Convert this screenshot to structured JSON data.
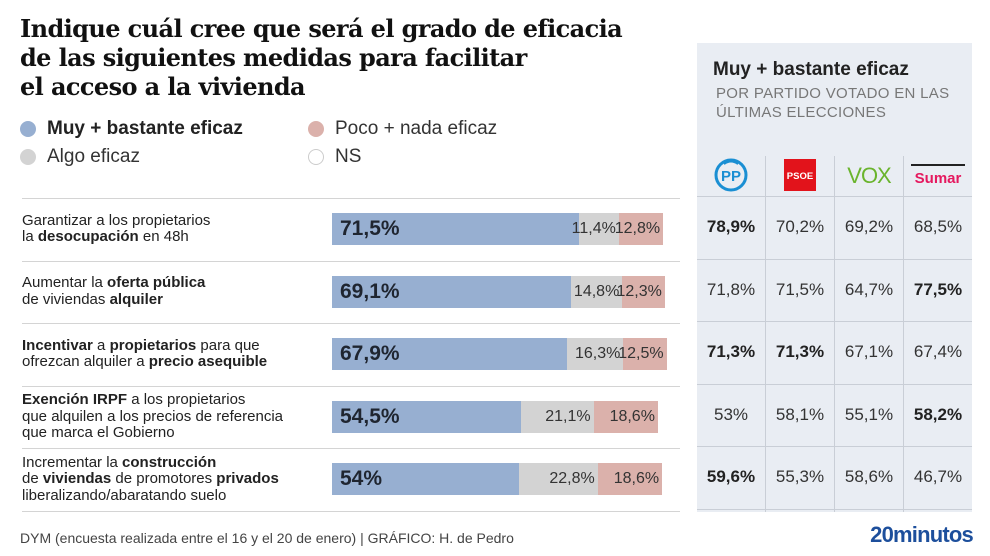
{
  "title_lines": [
    "Indique cuál cree que será el grado de eficacia",
    "de las siguientes medidas para facilitar",
    "el acceso a la vivienda"
  ],
  "legend": [
    {
      "label": "Muy + bastante eficaz",
      "color": "#97afd1",
      "bold": true
    },
    {
      "label": "Algo eficaz",
      "color": "#d3d3d3",
      "bold": false
    },
    {
      "label": "Poco + nada eficaz",
      "color": "#dbb1ab",
      "bold": false
    },
    {
      "label": "NS",
      "color": "#ffffff",
      "bold": false
    }
  ],
  "chart_data": {
    "type": "bar",
    "orientation": "horizontal-stacked-100",
    "title": "Indique cuál cree que será el grado de eficacia de las siguientes medidas para facilitar el acceso a la vivienda",
    "series_names": [
      "Muy + bastante eficaz",
      "Algo eficaz",
      "Poco + nada eficaz",
      "NS"
    ],
    "colors": [
      "#97afd1",
      "#d3d3d3",
      "#dbb1ab",
      "#ffffff"
    ],
    "categories": [
      "Garantizar a los propietarios la desocupación en 48h",
      "Aumentar la oferta pública de viviendas alquiler",
      "Incentivar a propietarios para que ofrezcan alquiler a precio asequible",
      "Exención IRPF a los propietarios que alquilen a los precios de referencia que marca el Gobierno",
      "Incrementar la construcción de viviendas de promotores privados liberalizando/abaratando suelo"
    ],
    "rows": [
      {
        "values": [
          71.5,
          11.4,
          12.8,
          4.3
        ],
        "labels": [
          "71,5%",
          "11,4%",
          "12,8%"
        ],
        "label_parts": [
          [
            "Garantizar a los propietarios",
            false
          ],
          [
            "\n",
            false
          ],
          [
            "la ",
            false
          ],
          [
            "desocupación",
            true
          ],
          [
            " en 48h",
            false
          ]
        ]
      },
      {
        "values": [
          69.1,
          14.8,
          12.3,
          3.8
        ],
        "labels": [
          "69,1%",
          "14,8%",
          "12,3%"
        ],
        "label_parts": [
          [
            "Aumentar la ",
            false
          ],
          [
            "oferta pública",
            true
          ],
          [
            "\n",
            false
          ],
          [
            "de viviendas ",
            false
          ],
          [
            "alquiler",
            true
          ]
        ]
      },
      {
        "values": [
          67.9,
          16.3,
          12.5,
          3.3
        ],
        "labels": [
          "67,9%",
          "16,3%",
          "12,5%"
        ],
        "label_parts": [
          [
            "Incentivar",
            true
          ],
          [
            " a ",
            false
          ],
          [
            "propietarios",
            true
          ],
          [
            " para que",
            false
          ],
          [
            "\n",
            false
          ],
          [
            "ofrezcan alquiler a ",
            false
          ],
          [
            "precio asequible",
            true
          ]
        ]
      },
      {
        "values": [
          54.5,
          21.1,
          18.6,
          5.8
        ],
        "labels": [
          "54,5%",
          "21,1%",
          "18,6%"
        ],
        "label_parts": [
          [
            "Exención IRPF",
            true
          ],
          [
            " a los propietarios",
            false
          ],
          [
            "\n",
            false
          ],
          [
            "que alquilen a los precios de referencia",
            false
          ],
          [
            "\n",
            false
          ],
          [
            "que marca el Gobierno",
            false
          ]
        ]
      },
      {
        "values": [
          54.0,
          22.8,
          18.6,
          4.6
        ],
        "labels": [
          "54%",
          "22,8%",
          "18,6%"
        ],
        "label_parts": [
          [
            "Incrementar la ",
            false
          ],
          [
            "construcción",
            true
          ],
          [
            "\n",
            false
          ],
          [
            "de ",
            false
          ],
          [
            "viviendas",
            true
          ],
          [
            " de promotores ",
            false
          ],
          [
            "privados",
            true
          ],
          [
            "\n",
            false
          ],
          [
            "liberalizando/abaratando suelo",
            false
          ]
        ]
      }
    ],
    "xlim": [
      0,
      100
    ]
  },
  "panel": {
    "title": "Muy + bastante eficaz",
    "subtitle": "POR PARTIDO VOTADO EN LAS ÚLTIMAS ELECCIONES",
    "parties": [
      {
        "name": "PP",
        "logo": "pp-logo",
        "color": "#1a8fd3"
      },
      {
        "name": "PSOE",
        "logo": "psoe-logo",
        "color": "#e2131b"
      },
      {
        "name": "VOX",
        "logo": "vox-logo",
        "color": "#6ab42d"
      },
      {
        "name": "Sumar",
        "logo": "sumar-logo",
        "color": "#e5195f"
      }
    ],
    "table": [
      [
        {
          "v": "78,9%",
          "b": true
        },
        {
          "v": "70,2%",
          "b": false
        },
        {
          "v": "69,2%",
          "b": false
        },
        {
          "v": "68,5%",
          "b": false
        }
      ],
      [
        {
          "v": "71,8%",
          "b": false
        },
        {
          "v": "71,5%",
          "b": false
        },
        {
          "v": "64,7%",
          "b": false
        },
        {
          "v": "77,5%",
          "b": true
        }
      ],
      [
        {
          "v": "71,3%",
          "b": true
        },
        {
          "v": "71,3%",
          "b": true
        },
        {
          "v": "67,1%",
          "b": false
        },
        {
          "v": "67,4%",
          "b": false
        }
      ],
      [
        {
          "v": "53%",
          "b": false
        },
        {
          "v": "58,1%",
          "b": false
        },
        {
          "v": "55,1%",
          "b": false
        },
        {
          "v": "58,2%",
          "b": true
        }
      ],
      [
        {
          "v": "59,6%",
          "b": true
        },
        {
          "v": "55,3%",
          "b": false
        },
        {
          "v": "58,6%",
          "b": false
        },
        {
          "v": "46,7%",
          "b": false
        }
      ]
    ]
  },
  "footer": {
    "source": "DYM (encuesta realizada entre el 16 y el 20 de enero)  |  GRÁFICO: H. de Pedro",
    "brand": "20minutos"
  }
}
